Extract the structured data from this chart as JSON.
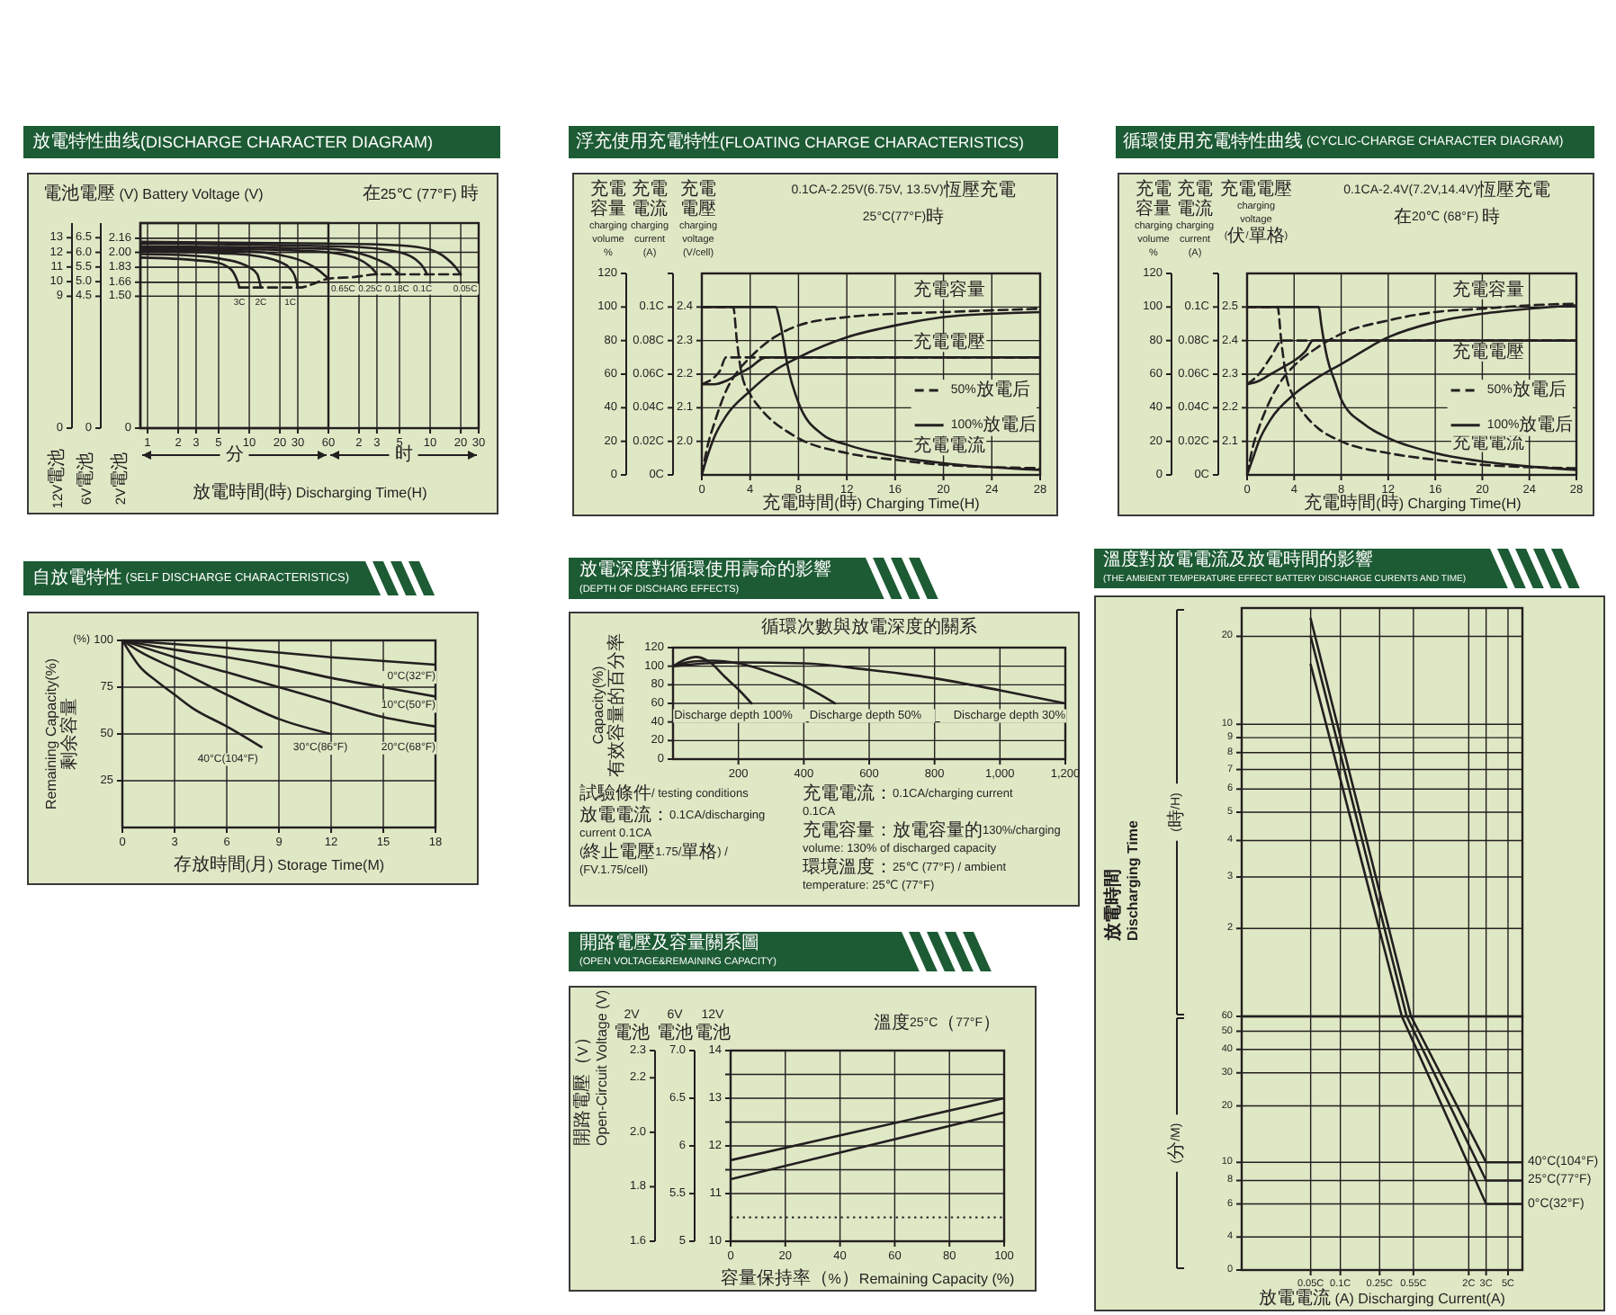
{
  "chart_data": [
    {
      "type": "line",
      "title": "放電特性曲线(DISCHARGE CHARACTER DIAGRAM)",
      "xlabel": "放電時間(時) Discharging Time(H)",
      "ylabel": "2V電池",
      "y2label": "6V電池",
      "y3label": "12V電池",
      "annotations": [
        "電池電壓 (V) Battery Voltage (V)",
        "在25℃ (77°F) 時",
        "分"
      ],
      "log": "x",
      "xlim": [
        0.85,
        60
      ],
      "xticks": [
        1,
        2,
        3,
        5,
        10,
        20,
        30,
        60
      ],
      "ylim": [
        0,
        2.333
      ],
      "yticks": [
        0,
        {
          "value": 1.5,
          "label": "1.50"
        },
        1.66,
        1.83,
        {
          "value": 2,
          "label": "2.00"
        },
        2.16
      ],
      "y2lim": [
        0,
        7
      ],
      "y2ticks": [
        0,
        4.5,
        {
          "value": 5,
          "label": "5.0"
        },
        5.5,
        {
          "value": 6,
          "label": "6.0"
        },
        6.5
      ],
      "y3lim": [
        0,
        14
      ],
      "y3ticks": [
        0,
        9,
        10,
        11,
        12,
        13
      ],
      "grid": true,
      "series": [
        {
          "name": "3C",
          "color": "#231f20",
          "x": [
            0.85,
            3,
            5,
            6,
            7,
            7.6,
            8
          ],
          "values": [
            1.94,
            1.91,
            1.88,
            1.84,
            1.77,
            1.68,
            1.6
          ]
        },
        {
          "name": "2C",
          "color": "#231f20",
          "x": [
            0.85,
            3,
            5,
            8,
            10,
            12,
            13
          ],
          "values": [
            1.98,
            1.96,
            1.93,
            1.88,
            1.83,
            1.75,
            1.6
          ]
        },
        {
          "name": "1C",
          "color": "#231f20",
          "x": [
            0.85,
            5,
            10,
            20,
            25,
            28,
            30
          ],
          "values": [
            2.01,
            1.99,
            1.97,
            1.89,
            1.82,
            1.73,
            1.6
          ]
        },
        {
          "name": "0.65C",
          "color": "#231f20",
          "x": [
            0.85,
            10,
            20,
            30,
            45,
            55,
            60
          ],
          "values": [
            2.03,
            2.01,
            1.97,
            1.92,
            1.82,
            1.74,
            1.7
          ]
        }
      ]
    },
    {
      "type": "line",
      "annotations": [
        "时"
      ],
      "log": "x",
      "xlim": [
        0.0142,
        30
      ],
      "xticks": [
        2,
        3,
        5,
        10,
        20,
        30
      ],
      "ylim": [
        0,
        2.333
      ],
      "yticks": [
        0,
        1.5,
        1.66,
        1.83,
        2,
        2.16
      ],
      "tick_labels": "x",
      "grid": true,
      "series": [
        {
          "name": "0.25C",
          "color": "#231f20",
          "x": [
            0.0142,
            0.5,
            1,
            2,
            2.5,
            2.83,
            3
          ],
          "values": [
            2.05,
            2.02,
            2.0,
            1.92,
            1.85,
            1.79,
            1.75
          ]
        },
        {
          "name": "0.18C",
          "color": "#231f20",
          "x": [
            0.0142,
            1,
            2,
            3,
            4.33,
            5
          ],
          "values": [
            2.07,
            2.04,
            1.99,
            1.92,
            1.82,
            1.75
          ]
        },
        {
          "name": "0.1C",
          "color": "#231f20",
          "x": [
            0.0142,
            1,
            2,
            5,
            7.17,
            8.67,
            9.33
          ],
          "values": [
            2.1,
            2.07,
            2.06,
            2.0,
            1.92,
            1.82,
            1.75
          ]
        },
        {
          "name": "0.05C",
          "color": "#231f20",
          "x": [
            0.0142,
            1,
            5,
            10,
            14.5,
            17.5,
            20
          ],
          "values": [
            2.12,
            2.1,
            2.08,
            2.03,
            1.93,
            1.84,
            1.75
          ]
        },
        {
          "color": "#231f20",
          "line_style": "dashed",
          "x": [
            0.133,
            0.533,
            0.667,
            1,
            1.83,
            3,
            20
          ],
          "values": [
            1.6,
            1.6,
            1.63,
            1.7,
            1.72,
            1.75,
            1.75
          ]
        }
      ]
    },
    {
      "type": "line",
      "title": "浮充使用充電特性(FLOATING CHARGE CHARACTERISTICS)",
      "xlabel": "充電時間(時) Charging Time(H)",
      "ylabel": "充電電壓 charging voltage (V/cell)",
      "y2label": "充電電流 charging current (A)",
      "y3label": "充電容量 charging volume %",
      "annotations": [
        "0.1CA-2.25V(6.75V, 13.5V)恆壓充電",
        "25°C(77°F)時",
        "充電容量",
        "充電電壓",
        "充電電流"
      ],
      "xlim": [
        0,
        28
      ],
      "xticks": [
        0,
        4,
        8,
        12,
        16,
        20,
        24,
        28
      ],
      "ylim": [
        1.9,
        2.5
      ],
      "yticks": [
        {
          "value": 2,
          "label": "2.0"
        },
        2.1,
        2.2,
        2.3,
        2.4
      ],
      "y2lim": [
        0,
        0.12
      ],
      "y2ticks": [
        {
          "value": 0,
          "label": "0C"
        },
        {
          "value": 0.02,
          "label": "0.02C"
        },
        {
          "value": 0.04,
          "label": "0.04C"
        },
        {
          "value": 0.06,
          "label": "0.06C"
        },
        {
          "value": 0.08,
          "label": "0.08C"
        },
        {
          "value": 0.1,
          "label": "0.1C"
        },
        {
          "value": 0.12,
          "label": null
        }
      ],
      "y3lim": [
        0,
        120
      ],
      "y3ticks": [
        0,
        20,
        40,
        60,
        80,
        100,
        120
      ],
      "grid": true,
      "legend": "right",
      "series": [
        {
          "name": "50%放電后",
          "color": "#231f20",
          "line_style": "dashed",
          "axis": "y3",
          "x": [
            0,
            0.5,
            1,
            2,
            3,
            4,
            6,
            8,
            12,
            16,
            20,
            28
          ],
          "values": [
            0,
            18,
            30,
            50,
            62,
            70,
            82,
            89,
            94,
            96,
            97,
            99
          ]
        },
        {
          "name": "100%放電后",
          "color": "#231f20",
          "line_style": "solid",
          "axis": "y3",
          "x": [
            0,
            0.5,
            1,
            2,
            4,
            6,
            8,
            12,
            16,
            20,
            24,
            28
          ],
          "values": [
            0,
            12,
            22,
            35,
            50,
            62,
            70,
            82,
            89,
            94,
            96,
            97
          ]
        },
        {
          "color": "#231f20",
          "line_style": "dashed",
          "axis": "y2",
          "x": [
            0,
            2.6,
            2.9,
            3.3,
            4,
            4.8,
            7.7,
            12,
            16,
            20,
            28
          ],
          "values": [
            0.1,
            0.1,
            0.08,
            0.06,
            0.048,
            0.04,
            0.023,
            0.013,
            0.009,
            0.006,
            0.004
          ]
        },
        {
          "color": "#231f20",
          "line_style": "solid",
          "axis": "y2",
          "x": [
            0,
            6.1,
            6.5,
            7.1,
            8,
            10,
            12,
            16,
            20,
            28
          ],
          "values": [
            0.1,
            0.1,
            0.09,
            0.065,
            0.043,
            0.024,
            0.018,
            0.011,
            0.007,
            0.003
          ]
        },
        {
          "color": "#231f20",
          "line_style": "dashed",
          "x": [
            0,
            1,
            1.5,
            2,
            28
          ],
          "values": [
            2.17,
            2.19,
            2.21,
            2.25,
            2.25
          ]
        },
        {
          "color": "#231f20",
          "line_style": "solid",
          "x": [
            0,
            1,
            2,
            3,
            4,
            5.3,
            28
          ],
          "values": [
            2.17,
            2.17,
            2.18,
            2.2,
            2.22,
            2.25,
            2.25
          ]
        }
      ]
    },
    {
      "type": "line",
      "title": "循環使用充電特性曲线 (CYCLIC-CHARGE CHARACTER DIAGRAM)",
      "xlabel": "充電時間(時) Charging Time(H)",
      "ylabel": "充電電壓 charging voltage (伏/單格)",
      "y2label": "充電電流 charging current (A)",
      "y3label": "充電容量 charging volume %",
      "annotations": [
        "0.1CA-2.4V(7.2V,14.4V)恆壓充電",
        "在20℃ (68°F) 時",
        "充電容量",
        "充電電壓",
        "充電電流"
      ],
      "xlim": [
        0,
        28
      ],
      "xticks": [
        0,
        4,
        8,
        12,
        16,
        20,
        24,
        28
      ],
      "ylim": [
        2,
        2.6
      ],
      "yticks": [
        2.1,
        2.2,
        2.3,
        2.4,
        2.5
      ],
      "y2lim": [
        0,
        0.12
      ],
      "y2ticks": [
        {
          "value": 0,
          "label": "0C"
        },
        {
          "value": 0.02,
          "label": "0.02C"
        },
        {
          "value": 0.04,
          "label": "0.04C"
        },
        {
          "value": 0.06,
          "label": "0.06C"
        },
        {
          "value": 0.08,
          "label": "0.08C"
        },
        {
          "value": 0.1,
          "label": "0.1C"
        },
        {
          "value": 0.12,
          "label": null
        }
      ],
      "y3lim": [
        0,
        120
      ],
      "y3ticks": [
        0,
        20,
        40,
        60,
        80,
        100,
        120
      ],
      "grid": true,
      "legend": "right",
      "series": [
        {
          "name": "50%放電后",
          "color": "#231f20",
          "line_style": "dashed",
          "axis": "y3",
          "x": [
            0,
            0.5,
            1,
            2,
            3,
            4,
            6,
            8,
            12,
            16,
            20,
            24,
            28
          ],
          "values": [
            0,
            17,
            28,
            45,
            57,
            65,
            76,
            84,
            92,
            97,
            99,
            101,
            102
          ]
        },
        {
          "name": "100%放電后",
          "color": "#231f20",
          "line_style": "solid",
          "axis": "y3",
          "x": [
            0,
            0.5,
            1,
            2,
            4,
            6,
            8,
            12,
            16,
            20,
            24,
            28
          ],
          "values": [
            0,
            10,
            20,
            33,
            48,
            58,
            66,
            82,
            91,
            96,
            99,
            101
          ]
        },
        {
          "color": "#231f20",
          "line_style": "dashed",
          "axis": "y2",
          "x": [
            0,
            2.6,
            2.9,
            3.3,
            4,
            5,
            6,
            8,
            12,
            16,
            20,
            28
          ],
          "values": [
            0.1,
            0.1,
            0.08,
            0.06,
            0.046,
            0.035,
            0.028,
            0.02,
            0.013,
            0.009,
            0.006,
            0.004
          ]
        },
        {
          "color": "#231f20",
          "line_style": "solid",
          "axis": "y2",
          "x": [
            0,
            6.1,
            6.3,
            6.8,
            7.5,
            8,
            10,
            12,
            16,
            20,
            24,
            28
          ],
          "values": [
            0.1,
            0.1,
            0.09,
            0.07,
            0.055,
            0.045,
            0.03,
            0.022,
            0.013,
            0.008,
            0.005,
            0.003
          ]
        },
        {
          "color": "#231f20",
          "line_style": "dashed",
          "x": [
            0,
            1,
            2,
            3,
            28
          ],
          "values": [
            2.27,
            2.3,
            2.35,
            2.4,
            2.4
          ]
        },
        {
          "color": "#231f20",
          "line_style": "solid",
          "x": [
            0,
            1,
            2,
            3,
            4,
            5,
            5.6,
            28
          ],
          "values": [
            2.27,
            2.28,
            2.3,
            2.32,
            2.34,
            2.37,
            2.4,
            2.4
          ]
        }
      ]
    },
    {
      "type": "line",
      "title": "自放電特性 (SELF DISCHARGE CHARACTERISTICS)",
      "xlabel": "存放時間(月) Storage Time(M)",
      "ylabel": "Remaining Capacity(%)\n剩余容量",
      "annotations": [
        "(%)"
      ],
      "xlim": [
        0,
        18
      ],
      "xticks": [
        0,
        3,
        6,
        9,
        12,
        15,
        18
      ],
      "ylim": [
        0,
        100
      ],
      "yticks": [
        25,
        50,
        75,
        100
      ],
      "grid": true,
      "series": [
        {
          "name": "0°C(32°F)",
          "color": "#231f20",
          "x": [
            0,
            6,
            12,
            18
          ],
          "values": [
            100,
            96,
            91,
            87
          ]
        },
        {
          "name": "10°C(50°F)",
          "color": "#231f20",
          "x": [
            0,
            3,
            6,
            9,
            12,
            15,
            18
          ],
          "values": [
            100,
            95,
            91,
            86,
            80,
            75,
            70
          ]
        },
        {
          "name": "20°C(68°F)",
          "color": "#231f20",
          "x": [
            0,
            3,
            6,
            9,
            12,
            15,
            18
          ],
          "values": [
            100,
            91,
            83,
            75,
            67,
            59,
            54
          ]
        },
        {
          "name": "30°C(86°F)",
          "color": "#231f20",
          "x": [
            0,
            1,
            3,
            6,
            9,
            12
          ],
          "values": [
            100,
            94,
            85,
            71,
            58,
            50
          ]
        },
        {
          "name": "40°C(104°F)",
          "color": "#231f20",
          "x": [
            0,
            1,
            2,
            3,
            4,
            6,
            8
          ],
          "values": [
            100,
            86,
            78,
            71,
            64,
            54,
            43
          ]
        }
      ]
    },
    {
      "type": "line",
      "title": "放電深度對循環使用壽命的影響",
      "subtitle": "(DEPTH OF DISCHARG EFFECTS)",
      "ylabel": "Capacity(%)\n有效容量的百分率",
      "annotations": [
        "循環次數與放電深度的關系",
        "試驗條件/ testing conditions",
        "放電電流：0.1CA/discharging current 0.1CA",
        "(終止電壓1.75/單格) / (FV.1.75/cell)",
        "充電電流：0.1CA/charging current 0.1CA",
        "充電容量：放電容量的130%/charging volume: 130% of discharged capacity",
        "環境溫度：25℃ (77°F) / ambient temperature: 25℃ (77°F)"
      ],
      "xlim": [
        0,
        1200
      ],
      "xticks": [
        200,
        400,
        600,
        800,
        {
          "value": 1000,
          "label": "1,000"
        },
        {
          "value": 1200,
          "label": "1,200"
        }
      ],
      "ylim": [
        0,
        120
      ],
      "yticks": [
        0,
        20,
        40,
        60,
        80,
        100,
        120
      ],
      "grid": true,
      "series": [
        {
          "name": "Discharge depth 100%",
          "color": "#231f20",
          "x": [
            0,
            30,
            70,
            110,
            160,
            200,
            240
          ],
          "values": [
            100,
            106,
            110,
            105,
            88,
            75,
            60
          ]
        },
        {
          "name": "Discharge depth 50%",
          "color": "#231f20",
          "x": [
            0,
            60,
            120,
            200,
            300,
            400,
            495
          ],
          "values": [
            100,
            105,
            106,
            103,
            93,
            79,
            60
          ]
        },
        {
          "name": "Discharge depth 30%",
          "color": "#231f20",
          "x": [
            0,
            100,
            200,
            400,
            600,
            800,
            1000,
            1200
          ],
          "values": [
            100,
            103,
            104,
            103,
            96,
            87,
            74,
            60
          ]
        }
      ]
    },
    {
      "type": "line",
      "title": "溫度對放電電流及放電時間的影響",
      "subtitle": "(THE AMBIENT TEMPERATURE EFFECT BATTERY DISCHARGE CURENTS AND TIME)",
      "ylabel": "(時/H)",
      "annotations": [
        "放電時間\nDischarging Time"
      ],
      "log": "xy",
      "xlim": [
        0.01,
        7
      ],
      "xticks": [
        {
          "value": 0.05,
          "label": "0.05C"
        },
        {
          "value": 0.1,
          "label": "0.1C"
        },
        {
          "value": 0.25,
          "label": "0.25C"
        },
        {
          "value": 0.55,
          "label": "0.55C"
        },
        {
          "value": 2,
          "label": "2C"
        },
        {
          "value": 3,
          "label": "3C"
        },
        {
          "value": 5,
          "label": "5C"
        }
      ],
      "ylim": [
        1,
        25
      ],
      "yticks": [
        2,
        3,
        4,
        5,
        6,
        7,
        8,
        9,
        10,
        20
      ],
      "tick_labels": "y",
      "grid": true,
      "series": [
        {
          "color": "#231f20",
          "x": [
            0.05,
            0.52
          ],
          "values": [
            23,
            1
          ]
        },
        {
          "color": "#231f20",
          "x": [
            0.05,
            0.47
          ],
          "values": [
            20,
            1
          ]
        },
        {
          "color": "#231f20",
          "x": [
            0.05,
            0.42
          ],
          "values": [
            16,
            1
          ]
        }
      ]
    },
    {
      "type": "line",
      "xlabel": "放電電流 (A) Discharging Current(A)",
      "ylabel": "(分/M)",
      "log": "xy",
      "xlim": [
        0.01,
        7
      ],
      "xticks": [
        {
          "value": 0.05,
          "label": "0.05C"
        },
        {
          "value": 0.1,
          "label": "0.1C"
        },
        {
          "value": 0.25,
          "label": "0.25C"
        },
        {
          "value": 0.55,
          "label": "0.55C"
        },
        {
          "value": 2,
          "label": "2C"
        },
        {
          "value": 3,
          "label": "3C"
        },
        {
          "value": 5,
          "label": "5C"
        }
      ],
      "ylim": [
        0,
        60
      ],
      "yticks": [
        0,
        4,
        6,
        8,
        10,
        20,
        30,
        40,
        50,
        60
      ],
      "grid": true,
      "series": [
        {
          "name": "40°C(104°F)",
          "color": "#231f20",
          "x": [
            0.52,
            3,
            7
          ],
          "values": [
            60,
            10,
            10
          ]
        },
        {
          "name": "25°C(77°F)",
          "color": "#231f20",
          "x": [
            0.47,
            3,
            7
          ],
          "values": [
            60,
            8,
            8
          ]
        },
        {
          "name": "0°C(32°F)",
          "color": "#231f20",
          "x": [
            0.42,
            3,
            7
          ],
          "values": [
            60,
            6,
            6
          ]
        }
      ]
    },
    {
      "type": "line",
      "title": "開路電壓及容量關系圖",
      "subtitle": "(OPEN VOLTAGE&REMAINING CAPACITY)",
      "xlabel": "容量保持率（%）Remaining Capacity (%)",
      "ylabel": "12V 電池",
      "y2label": "6V 電池",
      "y3label": "2V 電池",
      "annotations": [
        "開路電壓（V）\nOpen-Circuit Voltage (V)",
        "溫度25°C（77°F）"
      ],
      "xlim": [
        0,
        100
      ],
      "xticks": [
        0,
        20,
        40,
        60,
        80,
        100
      ],
      "ylim": [
        10,
        14
      ],
      "yticks": [
        10,
        11,
        {
          "value": 11.5,
          "label": null
        },
        12,
        {
          "value": 12.5,
          "label": null
        },
        13,
        {
          "value": 13.5,
          "label": null
        },
        14
      ],
      "y2lim": [
        5,
        7
      ],
      "y2ticks": [
        5,
        5.5,
        6,
        6.5,
        {
          "value": 7,
          "label": "7.0"
        }
      ],
      "y3lim": [
        1.6,
        2.3
      ],
      "y3ticks": [
        1.6,
        1.8,
        {
          "value": 2,
          "label": "2.0"
        },
        2.2,
        2.3
      ],
      "grid": true,
      "ref_lines": [
        {
          "axis": "y",
          "value": 10.5,
          "line_style": "dotted"
        }
      ],
      "series": [
        {
          "color": "#231f20",
          "x": [
            0,
            100
          ],
          "values": [
            11.7,
            13.0
          ]
        },
        {
          "color": "#231f20",
          "x": [
            0,
            100
          ],
          "values": [
            11.3,
            12.7
          ]
        }
      ]
    }
  ]
}
